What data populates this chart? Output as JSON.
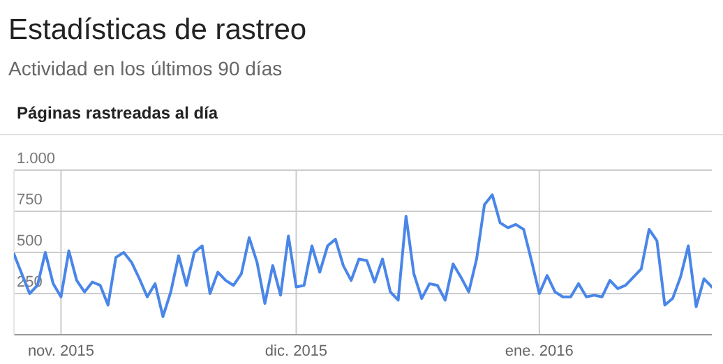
{
  "chart_data": {
    "type": "line",
    "title": "Estadísticas de rastreo",
    "subtitle": "Actividad en los últimos 90 días",
    "annotations": [
      "Páginas rastreadas al día"
    ],
    "x": [
      "2015-10-26",
      "2015-10-27",
      "2015-10-28",
      "2015-10-29",
      "2015-10-30",
      "2015-10-31",
      "2015-11-01",
      "2015-11-02",
      "2015-11-03",
      "2015-11-04",
      "2015-11-05",
      "2015-11-06",
      "2015-11-07",
      "2015-11-08",
      "2015-11-09",
      "2015-11-10",
      "2015-11-11",
      "2015-11-12",
      "2015-11-13",
      "2015-11-14",
      "2015-11-15",
      "2015-11-16",
      "2015-11-17",
      "2015-11-18",
      "2015-11-19",
      "2015-11-20",
      "2015-11-21",
      "2015-11-22",
      "2015-11-23",
      "2015-11-24",
      "2015-11-25",
      "2015-11-26",
      "2015-11-27",
      "2015-11-28",
      "2015-11-29",
      "2015-11-30",
      "2015-12-01",
      "2015-12-02",
      "2015-12-03",
      "2015-12-04",
      "2015-12-05",
      "2015-12-06",
      "2015-12-07",
      "2015-12-08",
      "2015-12-09",
      "2015-12-10",
      "2015-12-11",
      "2015-12-12",
      "2015-12-13",
      "2015-12-14",
      "2015-12-15",
      "2015-12-16",
      "2015-12-17",
      "2015-12-18",
      "2015-12-19",
      "2015-12-20",
      "2015-12-21",
      "2015-12-22",
      "2015-12-23",
      "2015-12-24",
      "2015-12-25",
      "2015-12-26",
      "2015-12-27",
      "2015-12-28",
      "2015-12-29",
      "2015-12-30",
      "2015-12-31",
      "2016-01-01",
      "2016-01-02",
      "2016-01-03",
      "2016-01-04",
      "2016-01-05",
      "2016-01-06",
      "2016-01-07",
      "2016-01-08",
      "2016-01-09",
      "2016-01-10",
      "2016-01-11",
      "2016-01-12",
      "2016-01-13",
      "2016-01-14",
      "2016-01-15",
      "2016-01-16",
      "2016-01-17",
      "2016-01-18",
      "2016-01-19",
      "2016-01-20",
      "2016-01-21",
      "2016-01-22",
      "2016-01-23"
    ],
    "series": [
      {
        "color": "#4a86e8",
        "values": [
          490,
          370,
          250,
          300,
          500,
          310,
          230,
          510,
          330,
          260,
          320,
          300,
          180,
          470,
          500,
          440,
          340,
          230,
          310,
          110,
          260,
          480,
          300,
          500,
          540,
          250,
          380,
          330,
          300,
          370,
          590,
          440,
          190,
          420,
          240,
          600,
          290,
          300,
          540,
          380,
          540,
          580,
          420,
          330,
          460,
          450,
          320,
          460,
          260,
          210,
          720,
          370,
          220,
          310,
          300,
          210,
          430,
          350,
          260,
          460,
          790,
          850,
          680,
          650,
          670,
          640,
          450,
          250,
          360,
          260,
          230,
          230,
          310,
          230,
          240,
          230,
          330,
          280,
          300,
          350,
          400,
          640,
          570,
          180,
          220,
          350,
          540,
          170,
          340,
          290
        ]
      }
    ],
    "xlim": [
      "2015-10-26",
      "2016-01-23"
    ],
    "xticks": [
      {
        "value": "2015-11-01",
        "label": "nov. 2015"
      },
      {
        "value": "2015-12-01",
        "label": "dic. 2015"
      },
      {
        "value": "2016-01-01",
        "label": "ene. 2016"
      }
    ],
    "ylim": [
      0,
      1000
    ],
    "yticks": [
      {
        "value": 250,
        "label": "250"
      },
      {
        "value": 500,
        "label": "500"
      },
      {
        "value": 750,
        "label": "750"
      },
      {
        "value": 1000,
        "label": "1.000"
      }
    ],
    "grid": true,
    "marker": "none",
    "line_style": "solid"
  }
}
